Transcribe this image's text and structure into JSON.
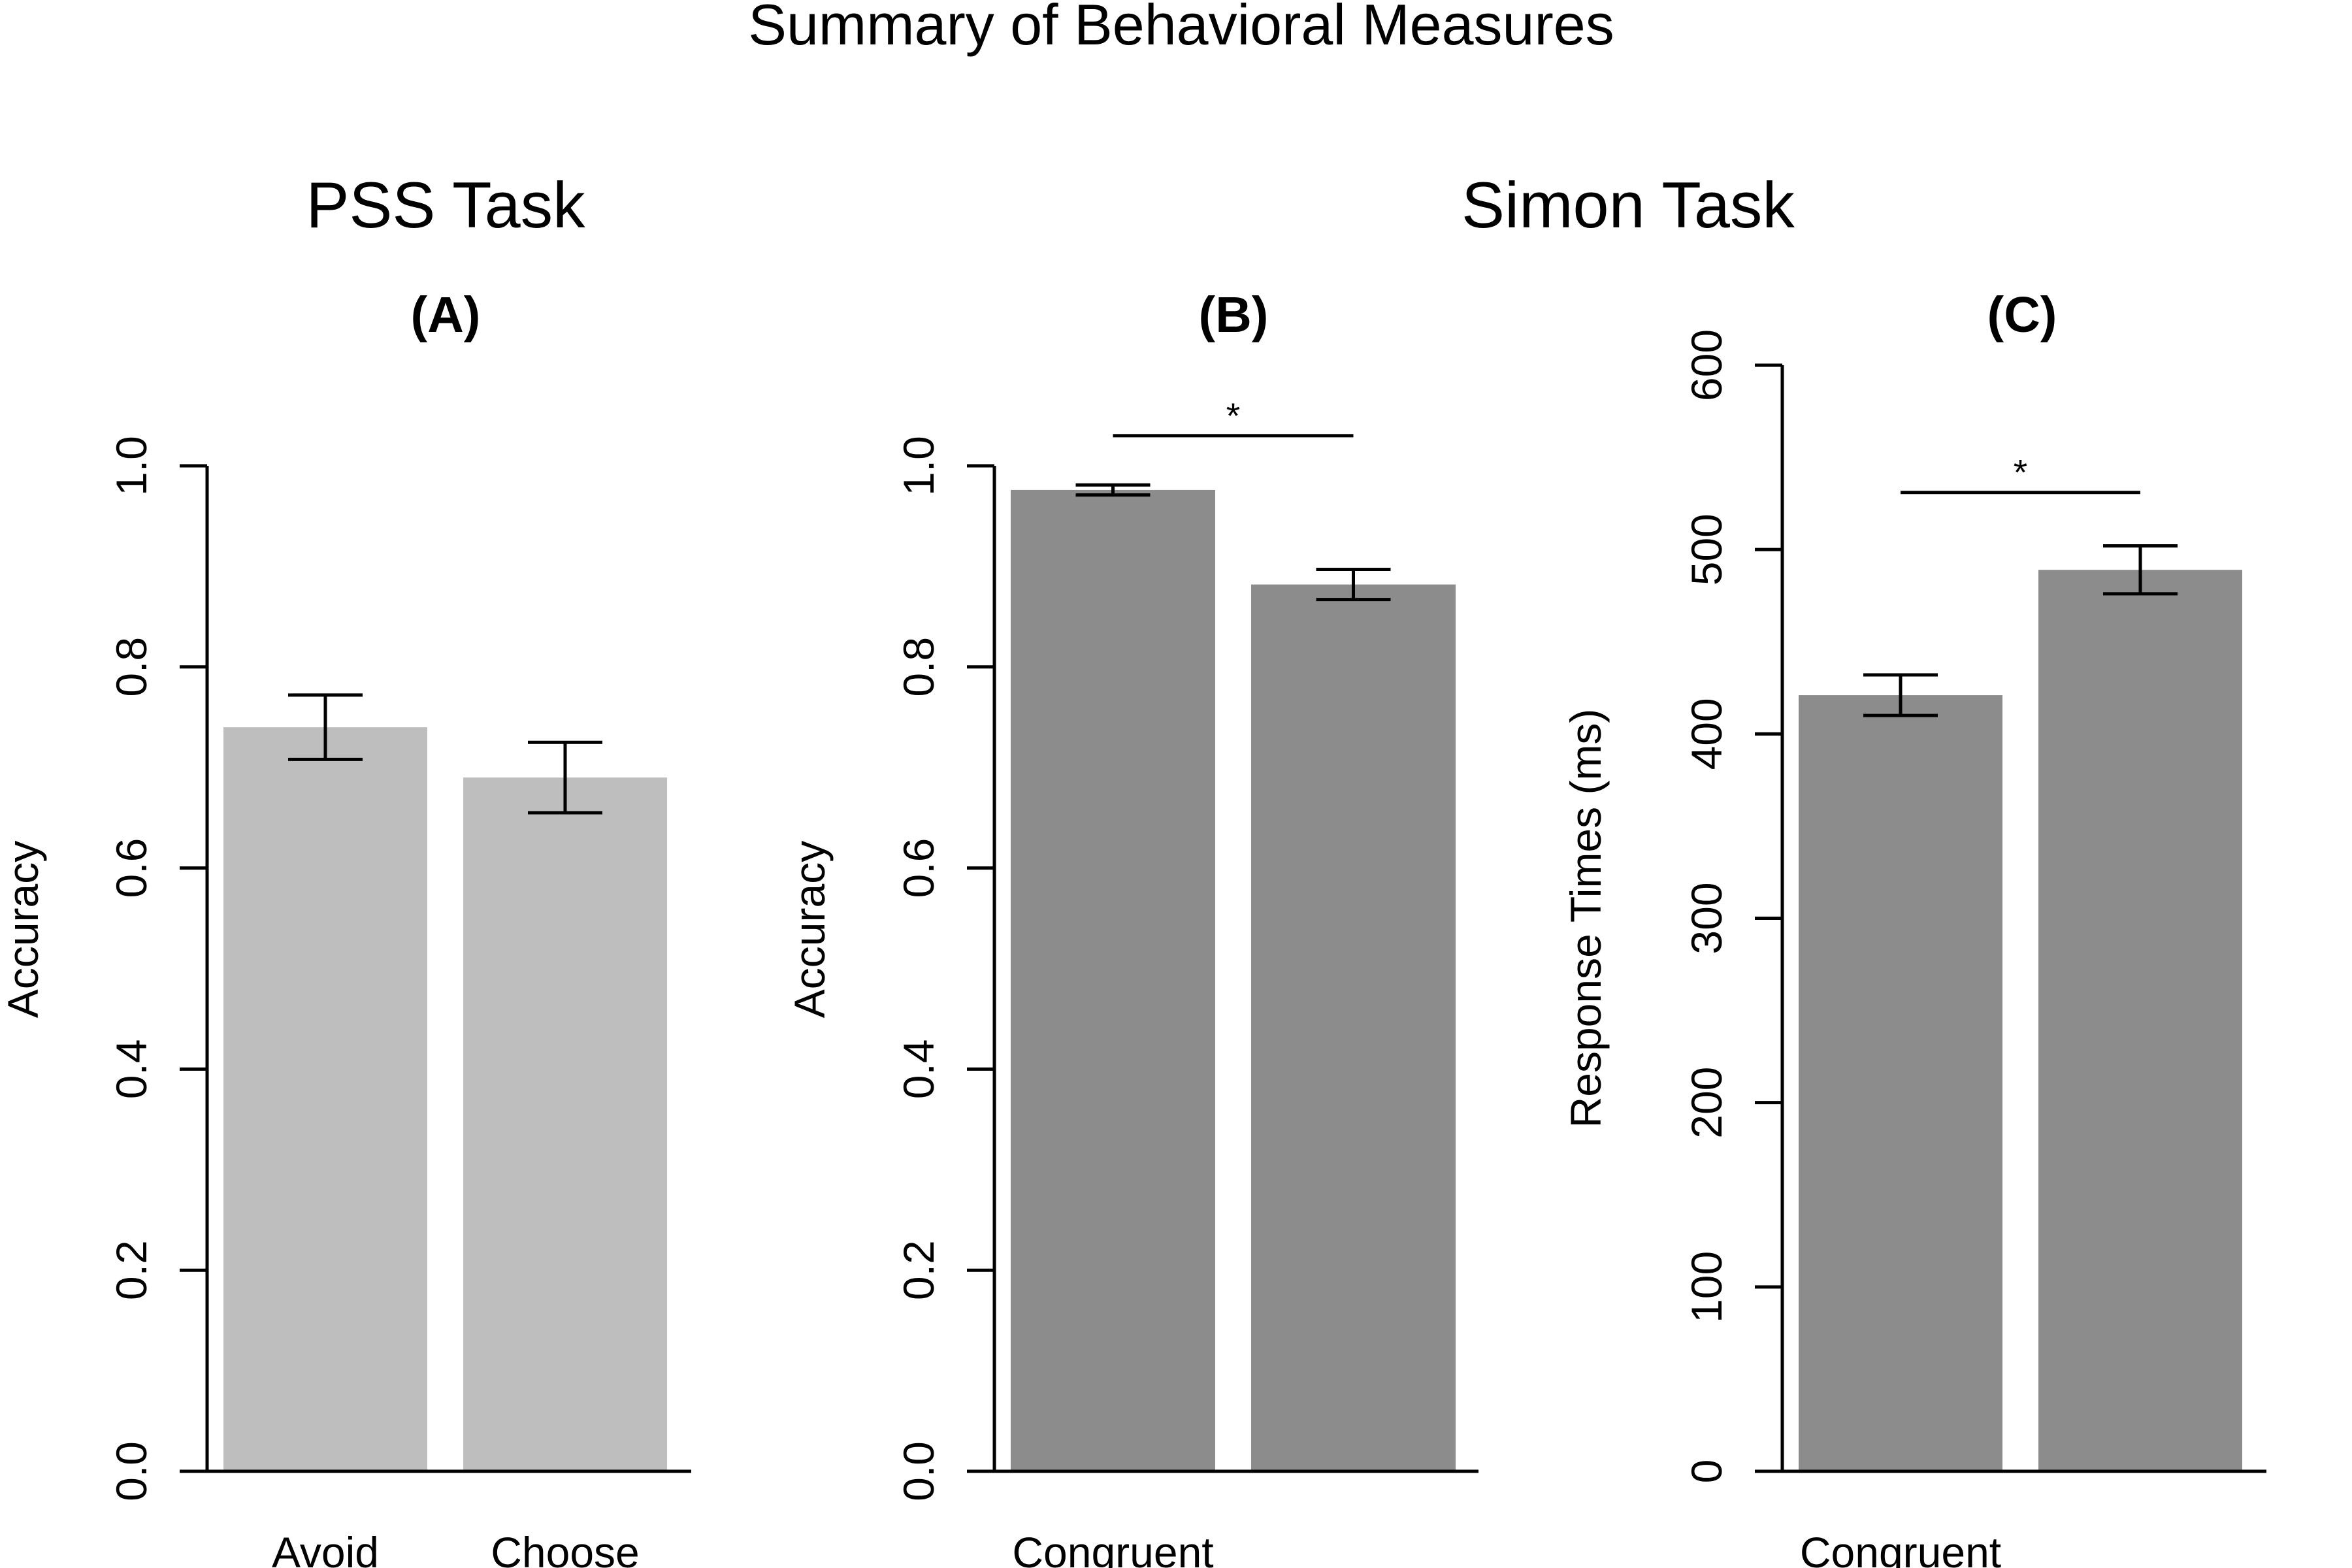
{
  "figure": {
    "title": "Summary of Behavioral Measures",
    "group_titles": [
      "PSS Task",
      "Simon Task"
    ]
  },
  "chart_data": [
    {
      "type": "bar",
      "panel_label": "(A)",
      "ylabel": "Accuracy",
      "ylim": [
        0,
        1
      ],
      "yticks": [
        "0.0",
        "0.2",
        "0.4",
        "0.6",
        "0.8",
        "1.0"
      ],
      "categories": [
        "Avoid",
        "Choose"
      ],
      "values": [
        0.74,
        0.69
      ],
      "errors": [
        0.032,
        0.035
      ],
      "bar_color": "#bebebe",
      "significance": null
    },
    {
      "type": "bar",
      "panel_label": "(B)",
      "ylabel": "Accuracy",
      "ylim": [
        0,
        1
      ],
      "yticks": [
        "0.0",
        "0.2",
        "0.4",
        "0.6",
        "0.8",
        "1.0"
      ],
      "categories": [
        "Congruent",
        ""
      ],
      "values": [
        0.976,
        0.882
      ],
      "errors": [
        0.005,
        0.015
      ],
      "bar_color": "#8c8c8c",
      "significance": {
        "label": "*",
        "y": 1.03
      }
    },
    {
      "type": "bar",
      "panel_label": "(C)",
      "ylabel": "Response Times (ms)",
      "ylim": [
        0,
        600
      ],
      "yticks": [
        "0",
        "100",
        "200",
        "300",
        "400",
        "500",
        "600"
      ],
      "categories": [
        "Congruent",
        ""
      ],
      "values": [
        421,
        489
      ],
      "errors": [
        11,
        13
      ],
      "bar_color": "#8c8c8c",
      "significance": {
        "label": "*",
        "y": 531
      }
    }
  ]
}
